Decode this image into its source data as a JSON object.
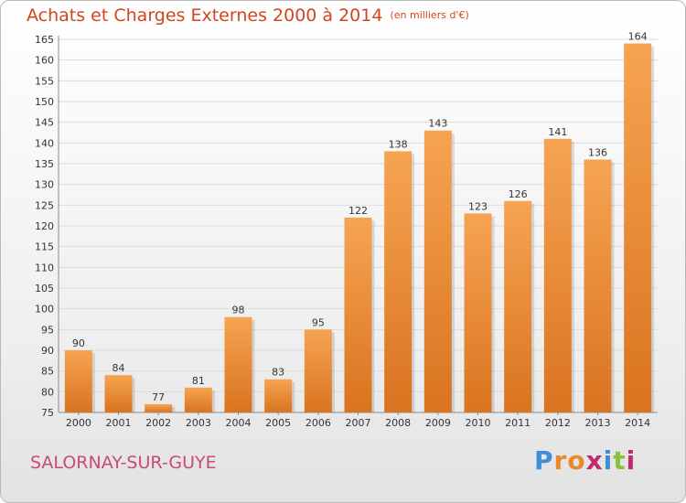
{
  "header": {
    "title": "Achats et Charges Externes 2000 à 2014",
    "unit": "(en milliers d'€)"
  },
  "footer": {
    "town": "SALORNAY-SUR-GUYE",
    "logo": "Proxiti"
  },
  "colors": {
    "title": "#d2451d",
    "town": "#c94b72",
    "bar_light": "#f6a452",
    "bar_dark": "#d9731f",
    "logo_letters": [
      "#3a8fd6",
      "#e8892a",
      "#e8892a",
      "#c22a6f",
      "#3a8fd6",
      "#8bbf3a",
      "#c22a6f"
    ]
  },
  "chart_data": {
    "type": "bar",
    "categories": [
      "2000",
      "2001",
      "2002",
      "2003",
      "2004",
      "2005",
      "2006",
      "2007",
      "2008",
      "2009",
      "2010",
      "2011",
      "2012",
      "2013",
      "2014"
    ],
    "values": [
      90,
      84,
      77,
      81,
      98,
      83,
      95,
      122,
      138,
      143,
      123,
      126,
      141,
      136,
      164
    ],
    "ylim": [
      75,
      165
    ],
    "ytick_step": 5,
    "grid": true,
    "title": "Achats et Charges Externes 2000 à 2014",
    "xlabel": "",
    "ylabel": ""
  }
}
